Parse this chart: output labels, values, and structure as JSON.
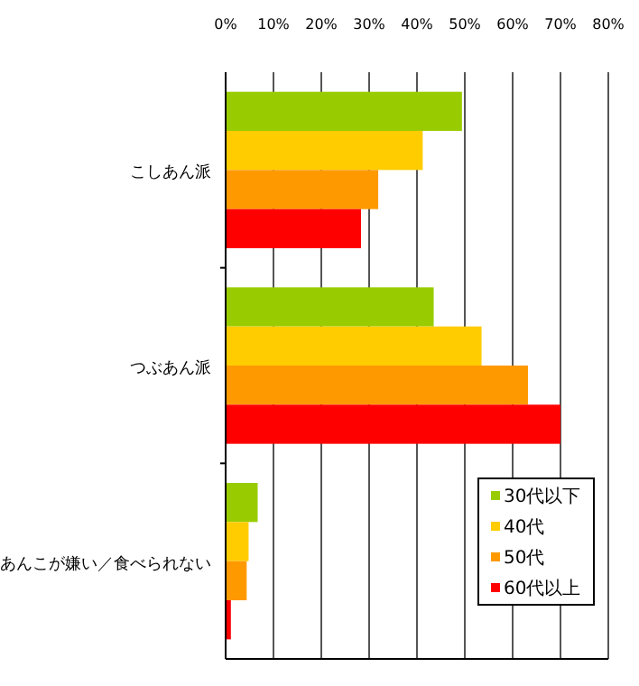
{
  "chart_data": {
    "type": "bar",
    "orientation": "horizontal",
    "categories": [
      "こしあん派",
      "つぶあん派",
      "あんこが嫌い／食べられない"
    ],
    "series": [
      {
        "name": "30代以下",
        "color": "#99cc00",
        "values": [
          49.4,
          43.5,
          6.7
        ]
      },
      {
        "name": "40代",
        "color": "#ffcc00",
        "values": [
          41.2,
          53.5,
          4.8
        ]
      },
      {
        "name": "50代",
        "color": "#ff9900",
        "values": [
          31.9,
          63.2,
          4.4
        ]
      },
      {
        "name": "60代以上",
        "color": "#ff0000",
        "values": [
          28.3,
          70,
          1.1
        ]
      }
    ],
    "xlim": [
      0,
      80
    ],
    "xticks": [
      {
        "value": 0,
        "label": "0%"
      },
      {
        "value": 10,
        "label": "10%"
      },
      {
        "value": 20,
        "label": "20%"
      },
      {
        "value": 30,
        "label": "30%"
      },
      {
        "value": 40,
        "label": "40%"
      },
      {
        "value": 50,
        "label": "50%"
      },
      {
        "value": 60,
        "label": "60%"
      },
      {
        "value": 70,
        "label": "70%"
      },
      {
        "value": 80,
        "label": "80%"
      }
    ],
    "grid": "x",
    "legend": "bottom right"
  }
}
